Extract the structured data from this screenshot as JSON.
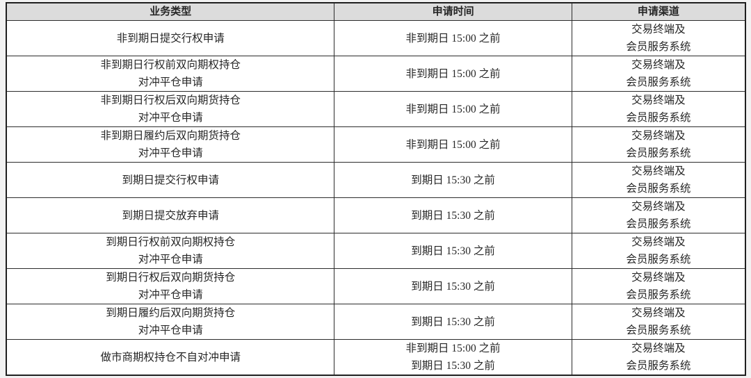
{
  "page": {
    "background_color": "#f2f2f2"
  },
  "colors": {
    "header_background": "#dcdcdc",
    "border": "#2b2b2b",
    "text": "#262626",
    "row_background": "#ffffff"
  },
  "table": {
    "headers": [
      {
        "label": "业务类型"
      },
      {
        "label": "申请时间"
      },
      {
        "label": "申请渠道"
      }
    ],
    "rows": [
      {
        "type": [
          "非到期日提交行权申请"
        ],
        "time": [
          "非到期日 15:00 之前"
        ],
        "channel": [
          "交易终端及",
          "会员服务系统"
        ]
      },
      {
        "type": [
          "非到期日行权前双向期权持仓",
          "对冲平仓申请"
        ],
        "time": [
          "非到期日 15:00 之前"
        ],
        "channel": [
          "交易终端及",
          "会员服务系统"
        ]
      },
      {
        "type": [
          "非到期日行权后双向期货持仓",
          "对冲平仓申请"
        ],
        "time": [
          "非到期日 15:00 之前"
        ],
        "channel": [
          "交易终端及",
          "会员服务系统"
        ]
      },
      {
        "type": [
          "非到期日履约后双向期货持仓",
          "对冲平仓申请"
        ],
        "time": [
          "非到期日 15:00 之前"
        ],
        "channel": [
          "交易终端及",
          "会员服务系统"
        ]
      },
      {
        "type": [
          "到期日提交行权申请"
        ],
        "time": [
          "到期日 15:30 之前"
        ],
        "channel": [
          "交易终端及",
          "会员服务系统"
        ]
      },
      {
        "type": [
          "到期日提交放弃申请"
        ],
        "time": [
          "到期日 15:30 之前"
        ],
        "channel": [
          "交易终端及",
          "会员服务系统"
        ]
      },
      {
        "type": [
          "到期日行权前双向期权持仓",
          "对冲平仓申请"
        ],
        "time": [
          "到期日 15:30 之前"
        ],
        "channel": [
          "交易终端及",
          "会员服务系统"
        ]
      },
      {
        "type": [
          "到期日行权后双向期货持仓",
          "对冲平仓申请"
        ],
        "time": [
          "到期日 15:30 之前"
        ],
        "channel": [
          "交易终端及",
          "会员服务系统"
        ]
      },
      {
        "type": [
          "到期日履约后双向期货持仓",
          "对冲平仓申请"
        ],
        "time": [
          "到期日 15:30 之前"
        ],
        "channel": [
          "交易终端及",
          "会员服务系统"
        ]
      },
      {
        "type": [
          "做市商期权持仓不自对冲申请"
        ],
        "time": [
          "非到期日 15:00 之前",
          "到期日 15:30 之前"
        ],
        "channel": [
          "交易终端及",
          "会员服务系统"
        ]
      }
    ]
  }
}
